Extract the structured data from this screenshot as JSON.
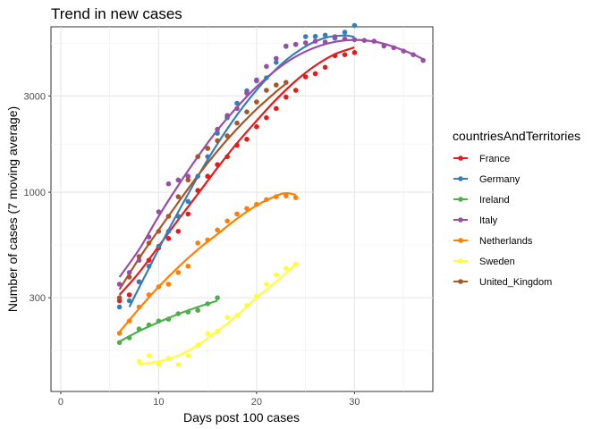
{
  "chart_data": {
    "type": "scatter",
    "title": "Trend in new cases",
    "xlabel": "Days post 100 cases",
    "ylabel": "Number of cases (7 moving average)",
    "xlim": [
      -1,
      38
    ],
    "ylim": [
      103,
      6600
    ],
    "yscale": "log10",
    "x_ticks": [
      0,
      10,
      20,
      30
    ],
    "y_ticks": [
      300,
      1000,
      3000
    ],
    "x_tick_labels": [
      "0",
      "10",
      "20",
      "30"
    ],
    "y_tick_labels": [
      "300",
      "1000",
      "3000"
    ],
    "grid": true,
    "fit_lines": "smoothed trend line per series",
    "legend": {
      "title": "countriesAndTerritories",
      "position": "right"
    },
    "series": [
      {
        "name": "France",
        "color": "#e41a1c",
        "points": [
          [
            6,
            290
          ],
          [
            7,
            310
          ],
          [
            8,
            360
          ],
          [
            9,
            460
          ],
          [
            10,
            530
          ],
          [
            11,
            590
          ],
          [
            12,
            640
          ],
          [
            13,
            780
          ],
          [
            14,
            1020
          ],
          [
            15,
            1200
          ],
          [
            16,
            1370
          ],
          [
            17,
            1500
          ],
          [
            18,
            1710
          ],
          [
            19,
            1830
          ],
          [
            20,
            2110
          ],
          [
            21,
            2340
          ],
          [
            22,
            2600
          ],
          [
            23,
            2960
          ],
          [
            24,
            3200
          ],
          [
            25,
            3730
          ],
          [
            26,
            3870
          ],
          [
            27,
            4160
          ],
          [
            28,
            4750
          ],
          [
            29,
            4800
          ],
          [
            30,
            4920
          ]
        ],
        "fit": [
          [
            6,
            310
          ],
          [
            8,
            400
          ],
          [
            10,
            540
          ],
          [
            12,
            730
          ],
          [
            14,
            980
          ],
          [
            16,
            1320
          ],
          [
            18,
            1750
          ],
          [
            20,
            2260
          ],
          [
            22,
            2880
          ],
          [
            24,
            3560
          ],
          [
            26,
            4240
          ],
          [
            28,
            4830
          ],
          [
            30,
            5220
          ]
        ]
      },
      {
        "name": "Germany",
        "color": "#377eb8",
        "points": [
          [
            6,
            270
          ],
          [
            7,
            290
          ],
          [
            8,
            360
          ],
          [
            9,
            430
          ],
          [
            10,
            540
          ],
          [
            11,
            640
          ],
          [
            12,
            760
          ],
          [
            13,
            900
          ],
          [
            14,
            1200
          ],
          [
            15,
            1500
          ],
          [
            16,
            1960
          ],
          [
            17,
            2340
          ],
          [
            18,
            2760
          ],
          [
            19,
            3180
          ],
          [
            20,
            3560
          ],
          [
            21,
            3690
          ],
          [
            22,
            4400
          ],
          [
            23,
            5280
          ],
          [
            24,
            5400
          ],
          [
            25,
            5900
          ],
          [
            26,
            5920
          ],
          [
            27,
            6000
          ],
          [
            28,
            5800
          ],
          [
            29,
            6200
          ],
          [
            30,
            6700
          ]
        ],
        "fit": [
          [
            7,
            270
          ],
          [
            9,
            420
          ],
          [
            11,
            650
          ],
          [
            13,
            980
          ],
          [
            15,
            1450
          ],
          [
            17,
            2060
          ],
          [
            19,
            2800
          ],
          [
            21,
            3640
          ],
          [
            23,
            4510
          ],
          [
            25,
            5280
          ],
          [
            27,
            5820
          ],
          [
            29,
            5980
          ],
          [
            30,
            5870
          ]
        ]
      },
      {
        "name": "Ireland",
        "color": "#4daf4a",
        "points": [
          [
            6,
            180
          ],
          [
            7,
            190
          ],
          [
            8,
            210
          ],
          [
            9,
            220
          ],
          [
            10,
            230
          ],
          [
            11,
            235
          ],
          [
            12,
            250
          ],
          [
            13,
            255
          ],
          [
            14,
            260
          ],
          [
            15,
            280
          ],
          [
            16,
            300
          ]
        ],
        "fit": [
          [
            6,
            182
          ],
          [
            8,
            205
          ],
          [
            10,
            227
          ],
          [
            12,
            249
          ],
          [
            14,
            270
          ],
          [
            16,
            290
          ]
        ]
      },
      {
        "name": "Italy",
        "color": "#984ea3",
        "points": [
          [
            6,
            350
          ],
          [
            7,
            400
          ],
          [
            8,
            460
          ],
          [
            9,
            600
          ],
          [
            10,
            800
          ],
          [
            11,
            1100
          ],
          [
            12,
            1150
          ],
          [
            13,
            1200
          ],
          [
            14,
            1500
          ],
          [
            15,
            1650
          ],
          [
            16,
            2050
          ],
          [
            17,
            2400
          ],
          [
            18,
            2600
          ],
          [
            19,
            3100
          ],
          [
            20,
            3600
          ],
          [
            21,
            4200
          ],
          [
            22,
            4600
          ],
          [
            23,
            5300
          ],
          [
            24,
            5400
          ],
          [
            25,
            5500
          ],
          [
            26,
            5600
          ],
          [
            27,
            5550
          ],
          [
            28,
            5900
          ],
          [
            29,
            5750
          ],
          [
            30,
            5700
          ],
          [
            31,
            5650
          ],
          [
            32,
            5600
          ],
          [
            33,
            5300
          ],
          [
            34,
            5200
          ],
          [
            35,
            5000
          ],
          [
            36,
            4800
          ],
          [
            37,
            4500
          ]
        ],
        "fit": [
          [
            6,
            380
          ],
          [
            8,
            520
          ],
          [
            10,
            760
          ],
          [
            12,
            1080
          ],
          [
            14,
            1500
          ],
          [
            16,
            2030
          ],
          [
            18,
            2640
          ],
          [
            20,
            3330
          ],
          [
            22,
            4040
          ],
          [
            24,
            4700
          ],
          [
            26,
            5220
          ],
          [
            28,
            5560
          ],
          [
            30,
            5690
          ],
          [
            32,
            5580
          ],
          [
            34,
            5260
          ],
          [
            36,
            4820
          ],
          [
            37,
            4560
          ]
        ]
      },
      {
        "name": "Netherlands",
        "color": "#ff7f00",
        "points": [
          [
            6,
            200
          ],
          [
            7,
            230
          ],
          [
            8,
            270
          ],
          [
            9,
            310
          ],
          [
            10,
            340
          ],
          [
            11,
            350
          ],
          [
            12,
            400
          ],
          [
            13,
            430
          ],
          [
            14,
            560
          ],
          [
            15,
            580
          ],
          [
            16,
            650
          ],
          [
            17,
            720
          ],
          [
            18,
            780
          ],
          [
            19,
            830
          ],
          [
            20,
            870
          ],
          [
            21,
            920
          ],
          [
            22,
            950
          ],
          [
            23,
            960
          ],
          [
            24,
            940
          ]
        ],
        "fit": [
          [
            6,
            203
          ],
          [
            8,
            265
          ],
          [
            10,
            340
          ],
          [
            12,
            425
          ],
          [
            14,
            520
          ],
          [
            16,
            620
          ],
          [
            18,
            740
          ],
          [
            20,
            860
          ],
          [
            22,
            960
          ],
          [
            23,
            990
          ],
          [
            24,
            970
          ]
        ]
      },
      {
        "name": "Sweden",
        "color": "#ffff33",
        "points": [
          [
            8,
            145
          ],
          [
            9,
            155
          ],
          [
            10,
            140
          ],
          [
            11,
            150
          ],
          [
            12,
            140
          ],
          [
            13,
            155
          ],
          [
            14,
            175
          ],
          [
            15,
            200
          ],
          [
            16,
            205
          ],
          [
            17,
            240
          ],
          [
            18,
            245
          ],
          [
            19,
            275
          ],
          [
            20,
            305
          ],
          [
            21,
            350
          ],
          [
            22,
            390
          ],
          [
            23,
            420
          ],
          [
            24,
            440
          ]
        ],
        "fit": [
          [
            8,
            140
          ],
          [
            10,
            145
          ],
          [
            12,
            155
          ],
          [
            14,
            175
          ],
          [
            16,
            205
          ],
          [
            18,
            245
          ],
          [
            20,
            300
          ],
          [
            22,
            360
          ],
          [
            24,
            440
          ]
        ]
      },
      {
        "name": "United_Kingdom",
        "color": "#a65628",
        "points": [
          [
            6,
            300
          ],
          [
            7,
            380
          ],
          [
            8,
            480
          ],
          [
            9,
            560
          ],
          [
            10,
            640
          ],
          [
            11,
            760
          ],
          [
            12,
            950
          ],
          [
            13,
            1150
          ],
          [
            14,
            1500
          ],
          [
            15,
            1650
          ],
          [
            16,
            1800
          ],
          [
            17,
            1900
          ],
          [
            18,
            2200
          ],
          [
            19,
            2500
          ],
          [
            20,
            2800
          ],
          [
            21,
            3200
          ],
          [
            22,
            3400
          ],
          [
            23,
            3500
          ]
        ],
        "fit": [
          [
            6,
            330
          ],
          [
            8,
            470
          ],
          [
            10,
            650
          ],
          [
            12,
            890
          ],
          [
            14,
            1210
          ],
          [
            16,
            1600
          ],
          [
            18,
            2060
          ],
          [
            20,
            2580
          ],
          [
            22,
            3150
          ],
          [
            23,
            3450
          ]
        ]
      }
    ]
  }
}
